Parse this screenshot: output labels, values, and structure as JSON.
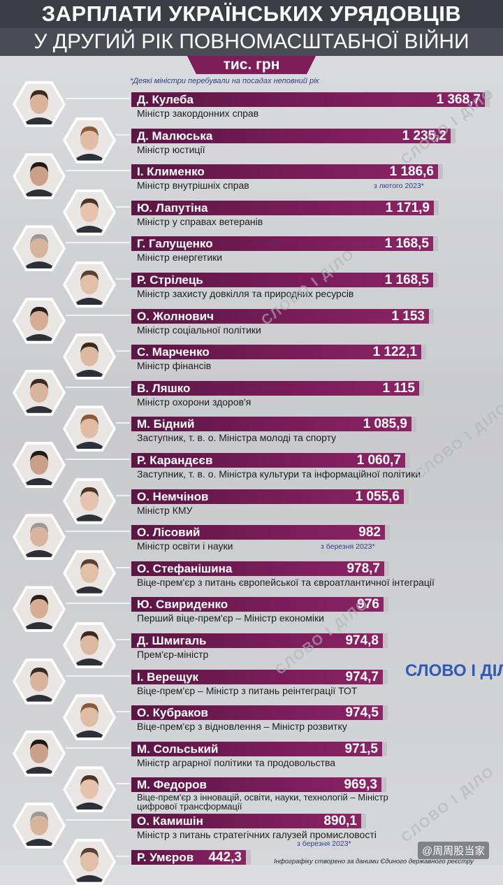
{
  "header": {
    "title_line1": "ЗАРПЛАТИ УКРАЇНСЬКИХ УРЯДОВЦІВ",
    "title_line2": "У ДРУГИЙ РІК ПОВНОМАСШТАБНОЇ ВІЙНИ",
    "unit": "тис. грн",
    "note": "*Деякі міністри перебували на посадах неповний рік"
  },
  "footer": {
    "source": "Інфографіку створено за даними Єдиного державного реєстру",
    "credit": "@周周股当家",
    "logo": "СЛОВО І ДІЛО"
  },
  "watermark_text": "СЛОВО І ДІЛО",
  "colors": {
    "bar": "#7b1d5a",
    "header": "#3b3d44",
    "note": "#2c3f8f"
  },
  "chart_data": {
    "type": "bar",
    "orientation": "horizontal",
    "unit": "тис. грн",
    "categories": [
      "Д. Кулеба",
      "Д. Малюська",
      "І. Клименко",
      "Ю. Лапутіна",
      "Г. Галущенко",
      "Р. Стрілець",
      "О. Жолнович",
      "С. Марченко",
      "В. Ляшко",
      "М. Бідний",
      "Р. Карандєєв",
      "О. Немчінов",
      "О. Лісовий",
      "О. Стефанішина",
      "Ю. Свириденко",
      "Д. Шмигаль",
      "І. Верещук",
      "О. Кубраков",
      "М. Сольський",
      "М. Федоров",
      "О. Камишін",
      "Р. Умєров"
    ],
    "values": [
      1368.7,
      1235.2,
      1186.6,
      1171.9,
      1168.5,
      1168.5,
      1153,
      1122.1,
      1115,
      1085.9,
      1060.7,
      1055.6,
      982,
      978.7,
      976,
      974.8,
      974.7,
      974.5,
      971.5,
      969.3,
      890.1,
      442.3
    ],
    "value_labels": [
      "1 368,7",
      "1 235,2",
      "1 186,6",
      "1 171,9",
      "1 168,5",
      "1 168,5",
      "1 153",
      "1 122,1",
      "1 115",
      "1 085,9",
      "1 060,7",
      "1 055,6",
      "982",
      "978,7",
      "976",
      "974,8",
      "974,7",
      "974,5",
      "971,5",
      "969,3",
      "890,1",
      "442,3"
    ],
    "roles": [
      "Міністр закордонних справ",
      "Міністр юстиції",
      "Міністр внутрішніх справ",
      "Міністр у справах ветеранів",
      "Міністр енергетики",
      "Міністр захисту довкілля та природних ресурсів",
      "Міністр соціальної політики",
      "Міністр фінансів",
      "Міністр охорони здоров'я",
      "Заступник, т. в. о. Міністра молоді та спорту",
      "Заступник, т. в. о. Міністра культури та інформаційної політики",
      "Міністр КМУ",
      "Міністр освіти і науки",
      "Віце-прем'єр з питань європейської та євроатлантичної інтеграції",
      "Перший віце-прем'єр – Міністр економіки",
      "Прем'єр-міністр",
      "Віце-прем'єр – Міністр з питань реінтеграції ТОТ",
      "Віце-прем'єр з відновлення – Міністр розвитку",
      "Міністр аграрної політики та продовольства",
      "Віце-прем'єр з інновацій, освіти, науки, технологій – Міністр цифрової трансформації",
      "Міністр з питань стратегічних галузей промисловості",
      ""
    ],
    "annotations": [
      "",
      "",
      "з лютого 2023*",
      "",
      "",
      "",
      "",
      "",
      "",
      "",
      "",
      "",
      "з березня 2023*",
      "",
      "",
      "",
      "",
      "",
      "",
      "",
      "з березня 2023*",
      ""
    ],
    "xlim": [
      0,
      1400
    ],
    "title": "ЗАРПЛАТИ УКРАЇНСЬКИХ УРЯДОВЦІВ У ДРУГИЙ РІК ПОВНОМАСШТАБНОЇ ВІЙНИ",
    "grid": false,
    "legend": "none"
  }
}
